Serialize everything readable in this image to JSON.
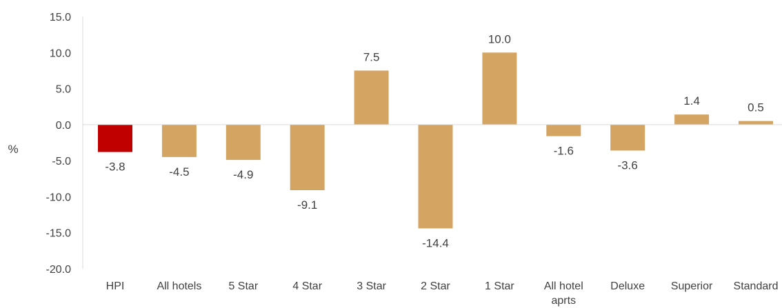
{
  "chart_data": {
    "type": "bar",
    "ylabel": "%",
    "ylim": [
      -20,
      15
    ],
    "yticks": [
      "15.0",
      "10.0",
      "5.0",
      "0.0",
      "-5.0",
      "-10.0",
      "-15.0",
      "-20.0"
    ],
    "grid": false,
    "categories": [
      [
        "HPI"
      ],
      [
        "All hotels"
      ],
      [
        "5 Star"
      ],
      [
        "4 Star"
      ],
      [
        "3 Star"
      ],
      [
        "2 Star"
      ],
      [
        "1 Star"
      ],
      [
        "All hotel",
        "aprts"
      ],
      [
        "Deluxe"
      ],
      [
        "Superior"
      ],
      [
        "Standard"
      ]
    ],
    "values": [
      -3.8,
      -4.5,
      -4.9,
      -9.1,
      7.5,
      -14.4,
      10.0,
      -1.6,
      -3.6,
      1.4,
      0.5
    ],
    "value_labels": [
      "-3.8",
      "-4.5",
      "-4.9",
      "-9.1",
      "7.5",
      "-14.4",
      "10.0",
      "-1.6",
      "-3.6",
      "1.4",
      "0.5"
    ],
    "colors": {
      "highlight": "#c00000",
      "default": "#d4a463",
      "axis": "#d9d9d9",
      "text": "#404040"
    },
    "highlight_index": 0
  }
}
